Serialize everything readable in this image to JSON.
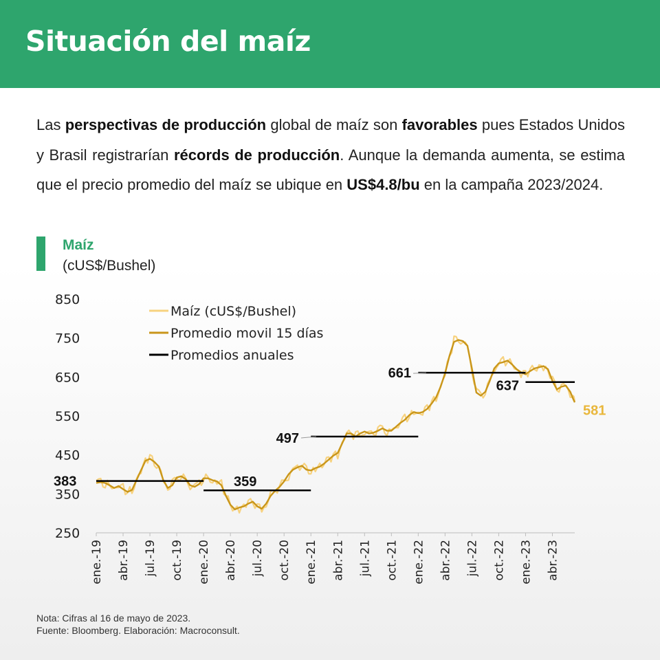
{
  "header": {
    "title": "Situación del maíz"
  },
  "intro": {
    "p1": "Las ",
    "b1": "perspectivas de producción",
    "p2": " global de maíz son ",
    "b2": "favorables",
    "p3": " pues Estados Unidos y Brasil registrarían ",
    "b3": "récords de producción",
    "p4": ". Aunque la demanda aumenta, se estima que el precio promedio del maíz se ubique en ",
    "b4": "US$4.8/bu",
    "p5": " en la campaña 2023/2024."
  },
  "chart_header": {
    "title": "Maíz",
    "subtitle": "(cUS$/Bushel)"
  },
  "notes": {
    "line1": "Nota: Cifras al 16 de mayo de 2023.",
    "line2": "Fuente: Bloomberg. Elaboración: Macroconsult."
  },
  "colors": {
    "header_green": "#2ea56d",
    "price": "#f7d27f",
    "moving_avg": "#c9961a",
    "annual_avg": "#000000",
    "last_value": "#e9b73c"
  },
  "chart_data": {
    "type": "line",
    "ylim": [
      250,
      850
    ],
    "yticks": [
      250,
      350,
      450,
      550,
      650,
      750,
      850
    ],
    "xlim": [
      0,
      53.5
    ],
    "xticks": [
      {
        "x": 0,
        "label": "ene.-19"
      },
      {
        "x": 3,
        "label": "abr.-19"
      },
      {
        "x": 6,
        "label": "jul.-19"
      },
      {
        "x": 9,
        "label": "oct.-19"
      },
      {
        "x": 12,
        "label": "ene.-20"
      },
      {
        "x": 15,
        "label": "abr.-20"
      },
      {
        "x": 18,
        "label": "jul.-20"
      },
      {
        "x": 21,
        "label": "oct.-20"
      },
      {
        "x": 24,
        "label": "ene.-21"
      },
      {
        "x": 27,
        "label": "abr.-21"
      },
      {
        "x": 30,
        "label": "jul.-21"
      },
      {
        "x": 33,
        "label": "oct.-21"
      },
      {
        "x": 36,
        "label": "ene.-22"
      },
      {
        "x": 39,
        "label": "abr.-22"
      },
      {
        "x": 42,
        "label": "jul.-22"
      },
      {
        "x": 45,
        "label": "oct.-22"
      },
      {
        "x": 48,
        "label": "ene.-23"
      },
      {
        "x": 51,
        "label": "abr.-23"
      }
    ],
    "legend": {
      "position": "top-left",
      "entries": [
        "Maíz (cUS$/Bushel)",
        "Promedio movil 15 días",
        "Promedios anuales"
      ]
    },
    "series": [
      {
        "name": "Promedio movil 15 días",
        "points": [
          [
            0,
            378
          ],
          [
            0.5,
            380
          ],
          [
            1,
            378
          ],
          [
            1.5,
            372
          ],
          [
            2,
            365
          ],
          [
            2.5,
            370
          ],
          [
            3,
            362
          ],
          [
            3.5,
            355
          ],
          [
            4,
            360
          ],
          [
            4.5,
            385
          ],
          [
            5,
            410
          ],
          [
            5.5,
            435
          ],
          [
            6,
            440
          ],
          [
            6.5,
            432
          ],
          [
            7,
            420
          ],
          [
            7.5,
            385
          ],
          [
            8,
            365
          ],
          [
            8.5,
            372
          ],
          [
            9,
            392
          ],
          [
            9.5,
            395
          ],
          [
            10,
            388
          ],
          [
            10.5,
            372
          ],
          [
            11,
            368
          ],
          [
            11.5,
            375
          ],
          [
            12,
            390
          ],
          [
            12.5,
            390
          ],
          [
            13,
            385
          ],
          [
            13.5,
            382
          ],
          [
            14,
            372
          ],
          [
            14.5,
            345
          ],
          [
            15,
            322
          ],
          [
            15.5,
            310
          ],
          [
            16,
            315
          ],
          [
            16.5,
            318
          ],
          [
            17,
            325
          ],
          [
            17.5,
            330
          ],
          [
            18,
            318
          ],
          [
            18.5,
            312
          ],
          [
            19,
            325
          ],
          [
            19.5,
            345
          ],
          [
            20,
            358
          ],
          [
            20.5,
            368
          ],
          [
            21,
            382
          ],
          [
            21.5,
            400
          ],
          [
            22,
            412
          ],
          [
            22.5,
            418
          ],
          [
            23,
            422
          ],
          [
            23.5,
            412
          ],
          [
            24,
            410
          ],
          [
            24.5,
            416
          ],
          [
            25,
            420
          ],
          [
            25.5,
            428
          ],
          [
            26,
            438
          ],
          [
            26.5,
            448
          ],
          [
            27,
            455
          ],
          [
            27.5,
            480
          ],
          [
            28,
            505
          ],
          [
            28.5,
            505
          ],
          [
            29,
            497
          ],
          [
            29.5,
            505
          ],
          [
            30,
            510
          ],
          [
            30.5,
            505
          ],
          [
            31,
            507
          ],
          [
            31.5,
            512
          ],
          [
            32,
            518
          ],
          [
            32.5,
            512
          ],
          [
            33,
            512
          ],
          [
            33.5,
            522
          ],
          [
            34,
            532
          ],
          [
            34.5,
            540
          ],
          [
            35,
            552
          ],
          [
            35.5,
            560
          ],
          [
            36,
            557
          ],
          [
            36.5,
            560
          ],
          [
            37,
            568
          ],
          [
            37.5,
            582
          ],
          [
            38,
            598
          ],
          [
            38.5,
            625
          ],
          [
            39,
            660
          ],
          [
            39.5,
            705
          ],
          [
            40,
            740
          ],
          [
            40.5,
            745
          ],
          [
            41,
            742
          ],
          [
            41.5,
            730
          ],
          [
            42,
            672
          ],
          [
            42.5,
            610
          ],
          [
            43,
            602
          ],
          [
            43.5,
            612
          ],
          [
            44,
            640
          ],
          [
            44.5,
            672
          ],
          [
            45,
            685
          ],
          [
            45.5,
            688
          ],
          [
            46,
            692
          ],
          [
            46.5,
            682
          ],
          [
            47,
            670
          ],
          [
            47.5,
            662
          ],
          [
            48,
            657
          ],
          [
            48.5,
            665
          ],
          [
            49,
            672
          ],
          [
            49.5,
            675
          ],
          [
            50,
            678
          ],
          [
            50.5,
            670
          ],
          [
            51,
            640
          ],
          [
            51.5,
            618
          ],
          [
            52,
            625
          ],
          [
            52.5,
            628
          ],
          [
            53,
            612
          ],
          [
            53.3,
            595
          ],
          [
            53.5,
            585
          ]
        ]
      },
      {
        "name": "Promedios anuales",
        "segments": [
          {
            "x0": 0,
            "x1": 12,
            "value": 383
          },
          {
            "x0": 12,
            "x1": 24,
            "value": 359
          },
          {
            "x0": 24,
            "x1": 36,
            "value": 497
          },
          {
            "x0": 36,
            "x1": 48,
            "value": 661
          },
          {
            "x0": 48,
            "x1": 53.5,
            "value": 637
          }
        ]
      }
    ],
    "annotations": [
      {
        "label": "383",
        "value": 383
      },
      {
        "label": "359",
        "value": 359
      },
      {
        "label": "497",
        "value": 497
      },
      {
        "label": "661",
        "value": 661
      },
      {
        "label": "637",
        "value": 637
      },
      {
        "label": "581",
        "value": 581
      }
    ]
  }
}
